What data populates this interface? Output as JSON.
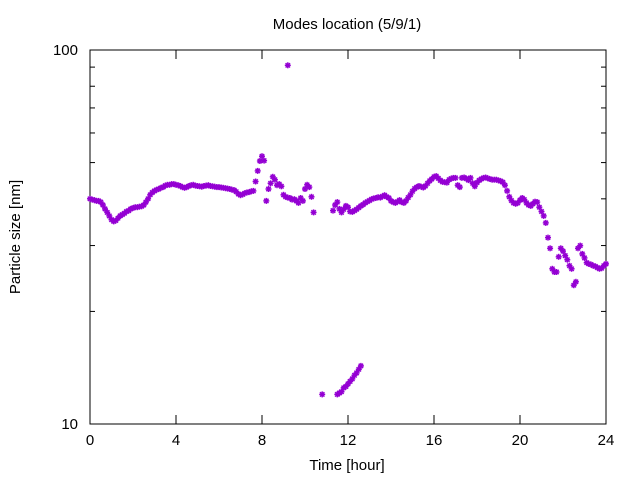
{
  "chart_data": {
    "type": "scatter",
    "title": "Modes location (5/9/1)",
    "xlabel": "Time [hour]",
    "ylabel": "Particle size [nm]",
    "xlim": [
      0,
      24
    ],
    "ylim": [
      10,
      100
    ],
    "yscale": "log",
    "xticks": [
      0,
      4,
      8,
      12,
      16,
      20,
      24
    ],
    "yticks": [
      10,
      100
    ],
    "grid": false,
    "legend": "none",
    "series": [
      {
        "color": "#9400d3",
        "marker": "asterisk",
        "points": [
          [
            0.0,
            40
          ],
          [
            0.1,
            39.8
          ],
          [
            0.2,
            39.7
          ],
          [
            0.3,
            39.5
          ],
          [
            0.4,
            39.5
          ],
          [
            0.5,
            39.2
          ],
          [
            0.6,
            38.5
          ],
          [
            0.7,
            37.6
          ],
          [
            0.8,
            36.8
          ],
          [
            0.9,
            36.0
          ],
          [
            1.0,
            35.2
          ],
          [
            1.1,
            34.8
          ],
          [
            1.2,
            35.0
          ],
          [
            1.3,
            35.5
          ],
          [
            1.4,
            36.0
          ],
          [
            1.5,
            36.3
          ],
          [
            1.6,
            36.6
          ],
          [
            1.7,
            37.0
          ],
          [
            1.8,
            37.2
          ],
          [
            1.9,
            37.6
          ],
          [
            2.0,
            37.8
          ],
          [
            2.1,
            38.0
          ],
          [
            2.2,
            38.0
          ],
          [
            2.3,
            38.1
          ],
          [
            2.4,
            38.2
          ],
          [
            2.5,
            38.5
          ],
          [
            2.6,
            39.2
          ],
          [
            2.7,
            40.0
          ],
          [
            2.8,
            41.0
          ],
          [
            2.9,
            41.6
          ],
          [
            3.0,
            42.0
          ],
          [
            3.1,
            42.3
          ],
          [
            3.2,
            42.5
          ],
          [
            3.3,
            42.8
          ],
          [
            3.4,
            43.0
          ],
          [
            3.5,
            43.4
          ],
          [
            3.6,
            43.6
          ],
          [
            3.7,
            43.6
          ],
          [
            3.8,
            43.8
          ],
          [
            3.9,
            43.8
          ],
          [
            4.0,
            43.6
          ],
          [
            4.1,
            43.5
          ],
          [
            4.2,
            43.3
          ],
          [
            4.3,
            43.0
          ],
          [
            4.4,
            42.8
          ],
          [
            4.5,
            43.0
          ],
          [
            4.6,
            43.3
          ],
          [
            4.7,
            43.5
          ],
          [
            4.8,
            43.6
          ],
          [
            4.9,
            43.4
          ],
          [
            5.0,
            43.3
          ],
          [
            5.1,
            43.2
          ],
          [
            5.2,
            43.1
          ],
          [
            5.3,
            43.3
          ],
          [
            5.4,
            43.4
          ],
          [
            5.5,
            43.5
          ],
          [
            5.6,
            43.3
          ],
          [
            5.7,
            43.2
          ],
          [
            5.8,
            43.1
          ],
          [
            5.9,
            43.0
          ],
          [
            6.0,
            43.0
          ],
          [
            6.1,
            42.9
          ],
          [
            6.2,
            42.8
          ],
          [
            6.3,
            42.7
          ],
          [
            6.4,
            42.6
          ],
          [
            6.5,
            42.5
          ],
          [
            6.6,
            42.3
          ],
          [
            6.7,
            42.2
          ],
          [
            6.8,
            41.8
          ],
          [
            6.9,
            41.2
          ],
          [
            7.0,
            40.9
          ],
          [
            7.1,
            41.1
          ],
          [
            7.2,
            41.4
          ],
          [
            7.3,
            41.6
          ],
          [
            7.4,
            41.7
          ],
          [
            7.5,
            41.9
          ],
          [
            7.6,
            42.0
          ],
          [
            7.7,
            44.5
          ],
          [
            7.8,
            47.5
          ],
          [
            7.9,
            50.5
          ],
          [
            8.0,
            52.0
          ],
          [
            8.1,
            50.6
          ],
          [
            8.2,
            39.5
          ],
          [
            8.3,
            42.5
          ],
          [
            8.4,
            44.0
          ],
          [
            8.5,
            45.8
          ],
          [
            8.6,
            45.0
          ],
          [
            8.7,
            43.5
          ],
          [
            8.8,
            43.8
          ],
          [
            8.9,
            43.2
          ],
          [
            9.0,
            41.0
          ],
          [
            9.1,
            40.5
          ],
          [
            9.2,
            40.3
          ],
          [
            9.3,
            40.2
          ],
          [
            9.4,
            39.8
          ],
          [
            9.5,
            39.9
          ],
          [
            9.6,
            39.5
          ],
          [
            9.7,
            39.0
          ],
          [
            9.8,
            40.2
          ],
          [
            9.9,
            39.5
          ],
          [
            10.0,
            42.5
          ],
          [
            10.1,
            43.6
          ],
          [
            10.2,
            43.0
          ],
          [
            10.3,
            40.5
          ],
          [
            10.4,
            36.8
          ],
          [
            9.2,
            91.0
          ],
          [
            10.8,
            12.0
          ],
          [
            11.3,
            37.2
          ],
          [
            11.4,
            38.5
          ],
          [
            11.5,
            39.2
          ],
          [
            11.6,
            37.6
          ],
          [
            11.7,
            36.8
          ],
          [
            11.8,
            37.5
          ],
          [
            11.9,
            38.3
          ],
          [
            12.0,
            38.0
          ],
          [
            12.1,
            37.0
          ],
          [
            12.2,
            36.9
          ],
          [
            12.3,
            37.2
          ],
          [
            12.4,
            37.5
          ],
          [
            12.5,
            37.9
          ],
          [
            12.6,
            38.3
          ],
          [
            12.7,
            38.6
          ],
          [
            12.8,
            39.0
          ],
          [
            12.9,
            39.3
          ],
          [
            13.0,
            39.6
          ],
          [
            13.1,
            39.9
          ],
          [
            13.2,
            40.1
          ],
          [
            13.3,
            40.2
          ],
          [
            13.4,
            40.4
          ],
          [
            13.5,
            40.3
          ],
          [
            13.6,
            40.6
          ],
          [
            13.7,
            40.9
          ],
          [
            13.8,
            40.5
          ],
          [
            13.9,
            40.2
          ],
          [
            14.0,
            39.5
          ],
          [
            14.1,
            39.2
          ],
          [
            14.2,
            39.0
          ],
          [
            14.3,
            39.3
          ],
          [
            14.4,
            39.7
          ],
          [
            14.5,
            39.2
          ],
          [
            14.6,
            39.0
          ],
          [
            14.7,
            39.5
          ],
          [
            14.8,
            40.3
          ],
          [
            14.9,
            41.0
          ],
          [
            15.0,
            41.9
          ],
          [
            15.1,
            42.6
          ],
          [
            15.2,
            43.0
          ],
          [
            15.3,
            43.3
          ],
          [
            15.4,
            43.1
          ],
          [
            15.5,
            42.9
          ],
          [
            15.6,
            43.3
          ],
          [
            15.7,
            44.0
          ],
          [
            15.8,
            44.7
          ],
          [
            15.9,
            45.2
          ],
          [
            16.0,
            45.8
          ],
          [
            16.1,
            46.0
          ],
          [
            16.2,
            45.4
          ],
          [
            16.3,
            44.8
          ],
          [
            16.4,
            44.4
          ],
          [
            16.5,
            44.3
          ],
          [
            16.6,
            44.2
          ],
          [
            16.7,
            45.0
          ],
          [
            16.8,
            45.3
          ],
          [
            16.9,
            45.5
          ],
          [
            17.0,
            45.5
          ],
          [
            17.1,
            43.5
          ],
          [
            17.2,
            43.0
          ],
          [
            17.3,
            45.5
          ],
          [
            17.4,
            45.6
          ],
          [
            17.5,
            45.3
          ],
          [
            17.6,
            44.9
          ],
          [
            17.7,
            45.5
          ],
          [
            17.8,
            44.0
          ],
          [
            17.9,
            43.2
          ],
          [
            18.0,
            44.2
          ],
          [
            18.1,
            44.8
          ],
          [
            18.2,
            45.2
          ],
          [
            18.3,
            45.5
          ],
          [
            18.4,
            45.6
          ],
          [
            18.5,
            45.4
          ],
          [
            18.6,
            45.2
          ],
          [
            18.7,
            45.0
          ],
          [
            18.8,
            45.0
          ],
          [
            18.9,
            45.0
          ],
          [
            19.0,
            44.8
          ],
          [
            19.1,
            44.6
          ],
          [
            19.2,
            44.3
          ],
          [
            19.3,
            43.5
          ],
          [
            19.4,
            42.0
          ],
          [
            19.5,
            40.5
          ],
          [
            19.6,
            39.6
          ],
          [
            19.7,
            39.0
          ],
          [
            19.8,
            38.8
          ],
          [
            19.9,
            39.0
          ],
          [
            20.0,
            39.7
          ],
          [
            20.1,
            40.2
          ],
          [
            20.2,
            39.8
          ],
          [
            20.3,
            39.0
          ],
          [
            20.4,
            38.5
          ],
          [
            20.5,
            38.3
          ],
          [
            20.6,
            38.8
          ],
          [
            20.7,
            39.3
          ],
          [
            20.8,
            39.2
          ],
          [
            20.9,
            38.0
          ],
          [
            21.0,
            37.0
          ],
          [
            21.1,
            36.0
          ],
          [
            21.2,
            34.5
          ],
          [
            21.3,
            31.5
          ],
          [
            21.4,
            29.5
          ],
          [
            21.5,
            26.0
          ],
          [
            21.6,
            25.5
          ],
          [
            21.7,
            25.5
          ],
          [
            21.8,
            28.0
          ],
          [
            21.9,
            29.5
          ],
          [
            22.0,
            29.0
          ],
          [
            22.1,
            28.2
          ],
          [
            22.2,
            27.5
          ],
          [
            22.3,
            26.5
          ],
          [
            22.4,
            26.0
          ],
          [
            22.5,
            23.5
          ],
          [
            22.6,
            24.0
          ],
          [
            22.7,
            29.5
          ],
          [
            22.8,
            30.0
          ],
          [
            22.9,
            28.5
          ],
          [
            23.0,
            27.8
          ],
          [
            23.1,
            27.0
          ],
          [
            23.2,
            26.8
          ],
          [
            23.3,
            26.7
          ],
          [
            23.4,
            26.5
          ],
          [
            23.5,
            26.4
          ],
          [
            23.6,
            26.2
          ],
          [
            23.7,
            26.0
          ],
          [
            23.8,
            26.1
          ],
          [
            23.9,
            26.5
          ],
          [
            24.0,
            26.8
          ],
          [
            11.5,
            12.0
          ],
          [
            11.6,
            12.1
          ],
          [
            11.7,
            12.2
          ],
          [
            11.8,
            12.5
          ],
          [
            11.9,
            12.6
          ],
          [
            12.0,
            12.8
          ],
          [
            12.1,
            13.0
          ],
          [
            12.2,
            13.2
          ],
          [
            12.3,
            13.5
          ],
          [
            12.4,
            13.7
          ],
          [
            12.5,
            14.0
          ],
          [
            12.6,
            14.3
          ]
        ]
      }
    ]
  }
}
